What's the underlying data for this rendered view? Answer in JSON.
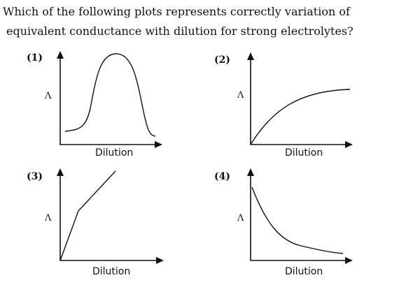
{
  "question": {
    "lines": [
      "Which of the following plots represents correctly variation of",
      "equivalent conductance with dilution for strong electrolytes?"
    ]
  },
  "options": [
    {
      "label": "(1)",
      "y_label": "Λ",
      "x_label": "Dilution"
    },
    {
      "label": "(2)",
      "y_label": "Λ",
      "x_label": "Dilution"
    },
    {
      "label": "(3)",
      "y_label": "Λ",
      "x_label": "Dilution"
    },
    {
      "label": "(4)",
      "y_label": "Λ",
      "x_label": "Dilution"
    }
  ]
}
